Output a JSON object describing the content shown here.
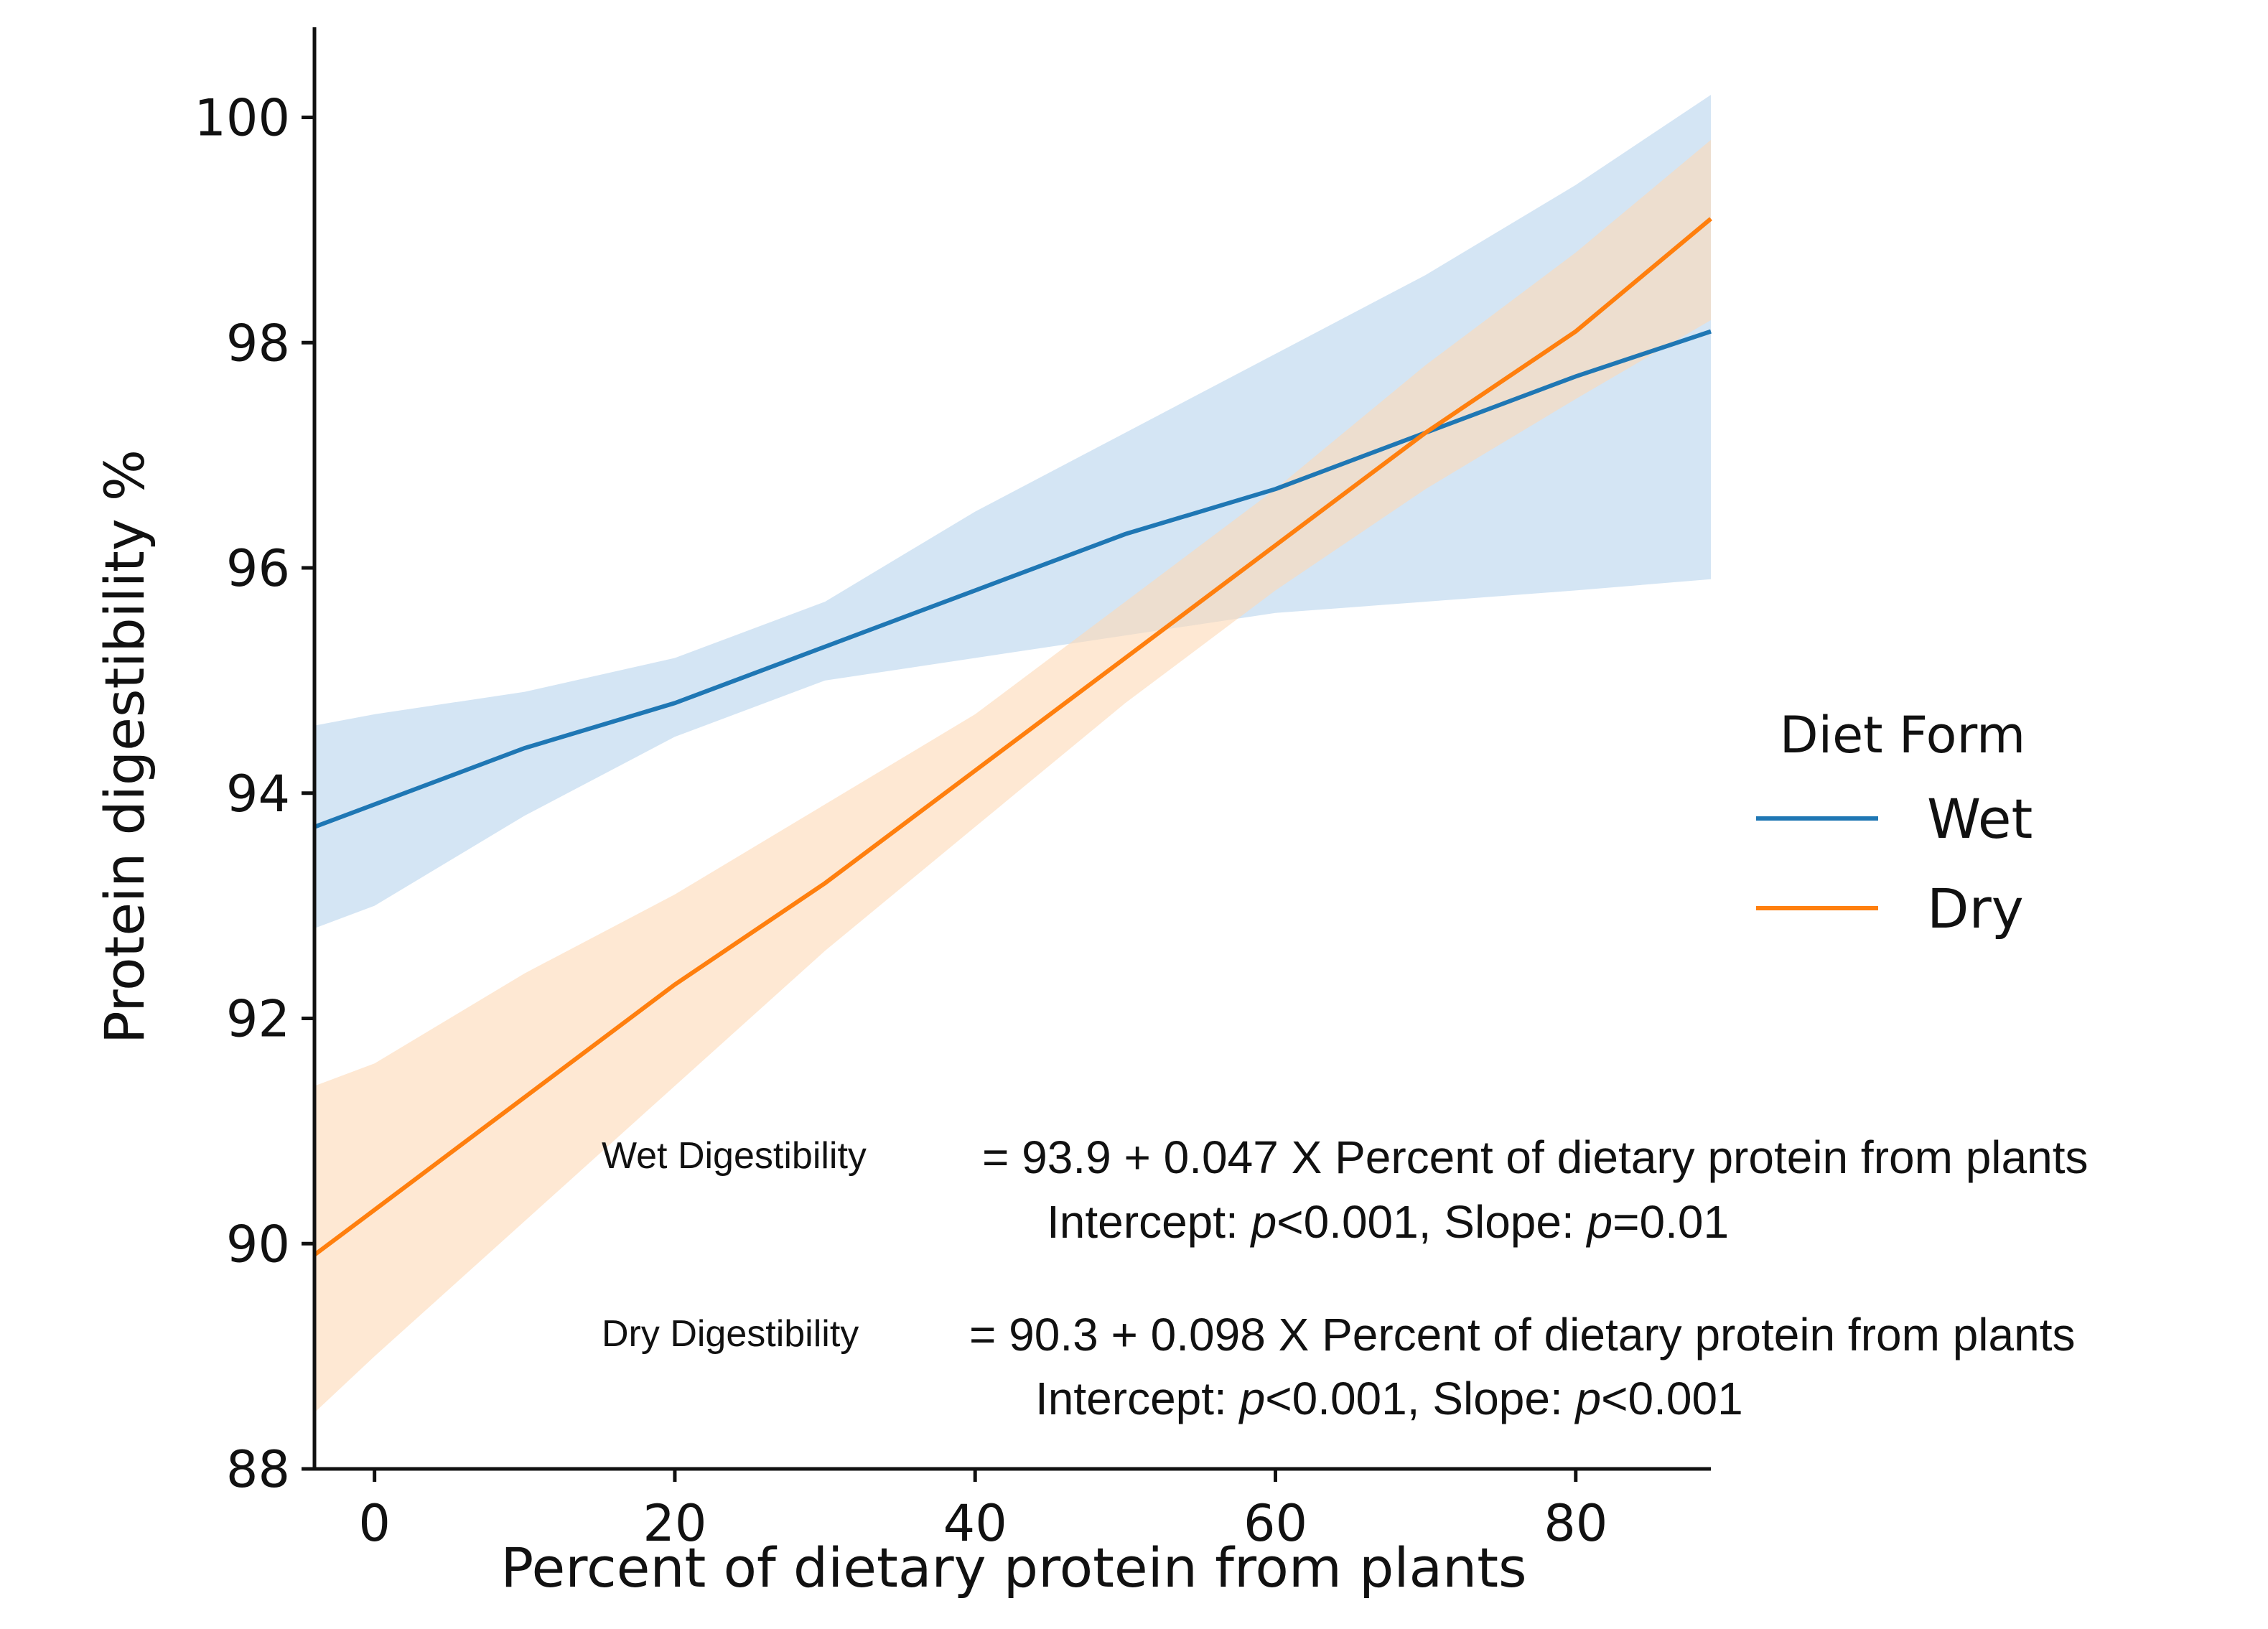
{
  "chart_data": {
    "type": "line",
    "title": "",
    "xlabel": "Percent of dietary protein from plants",
    "ylabel": "Protein digestibility %",
    "xlim": [
      -4,
      89
    ],
    "ylim": [
      88,
      100.8
    ],
    "xticks": [
      0,
      20,
      40,
      60,
      80
    ],
    "yticks": [
      88,
      90,
      92,
      94,
      96,
      98,
      100
    ],
    "grid": false,
    "legend": {
      "title": "Diet Form",
      "placement": "center-right"
    },
    "series": [
      {
        "name": "Wet",
        "color": "#1f77b4",
        "band_color": "#c6dcf0",
        "x": [
          -4,
          0,
          10,
          20,
          30,
          40,
          50,
          60,
          70,
          80,
          89
        ],
        "y": [
          93.7,
          93.9,
          94.4,
          94.8,
          95.3,
          95.8,
          96.3,
          96.7,
          97.2,
          97.7,
          98.1
        ],
        "ci_lower": [
          92.8,
          93.0,
          93.8,
          94.5,
          95.0,
          95.2,
          95.4,
          95.6,
          95.7,
          95.8,
          95.9
        ],
        "ci_upper": [
          94.6,
          94.7,
          94.9,
          95.2,
          95.7,
          96.5,
          97.2,
          97.9,
          98.6,
          99.4,
          100.2
        ]
      },
      {
        "name": "Dry",
        "color": "#ff7f0e",
        "band_color": "#fdd8b6",
        "x": [
          -4,
          0,
          10,
          20,
          30,
          40,
          50,
          60,
          70,
          80,
          89
        ],
        "y": [
          89.9,
          90.3,
          91.3,
          92.3,
          93.2,
          94.2,
          95.2,
          96.2,
          97.2,
          98.1,
          99.1
        ],
        "ci_lower": [
          88.5,
          89.0,
          90.2,
          91.4,
          92.6,
          93.7,
          94.8,
          95.8,
          96.7,
          97.5,
          98.2
        ],
        "ci_upper": [
          91.4,
          91.6,
          92.4,
          93.1,
          93.9,
          94.7,
          95.7,
          96.7,
          97.8,
          98.8,
          99.8
        ]
      }
    ],
    "annotations": [
      {
        "label": "Wet Digestibility",
        "equation": "= 93.9 + 0.047 X Percent of dietary protein from plants",
        "stats_parts": [
          "Intercept: ",
          "p",
          "<0.001, Slope: ",
          "p",
          "=0.01"
        ]
      },
      {
        "label": "Dry Digestibility",
        "equation": "= 90.3 + 0.098 X Percent of dietary protein from plants",
        "stats_parts": [
          "Intercept: ",
          "p",
          "<0.001, Slope: ",
          "p",
          "<0.001"
        ]
      }
    ]
  }
}
